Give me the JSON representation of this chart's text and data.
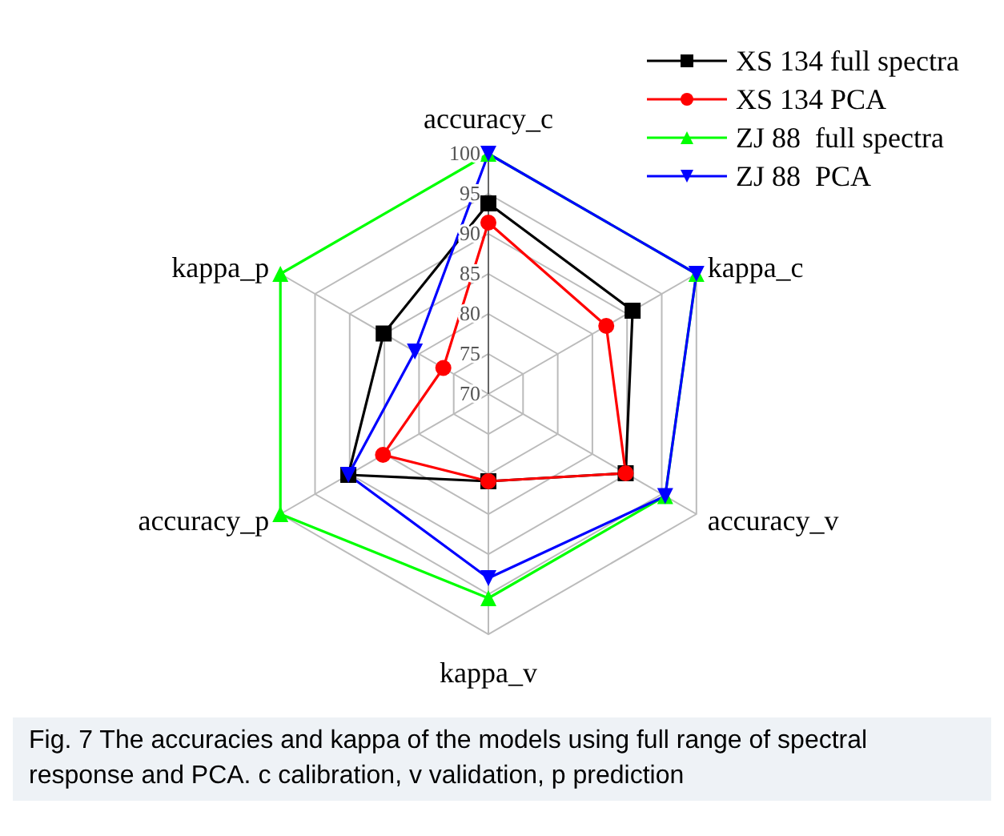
{
  "chart_data": {
    "type": "radar",
    "categories": [
      "accuracy_c",
      "kappa_c",
      "accuracy_v",
      "kappa_v",
      "accuracy_p",
      "kappa_p"
    ],
    "series": [
      {
        "name": "XS 134 full spectra",
        "color": "#000000",
        "marker": "square",
        "values": [
          93.8,
          90.8,
          89.8,
          80.9,
          90.2,
          85.1
        ]
      },
      {
        "name": "XS 134 PCA",
        "color": "#ff0000",
        "marker": "circle",
        "values": [
          91.4,
          87,
          89.8,
          80.9,
          85.2,
          76.5
        ]
      },
      {
        "name": "ZJ 88  full spectra",
        "color": "#00ff00",
        "marker": "triangle",
        "values": [
          100,
          100,
          95.5,
          95.5,
          100,
          100
        ]
      },
      {
        "name": "ZJ 88  PCA",
        "color": "#0000ff",
        "marker": "triangle-down",
        "values": [
          100,
          100,
          95.5,
          93,
          90.2,
          80.6
        ]
      }
    ],
    "ylim": [
      70,
      100
    ],
    "yticks": [
      70,
      75,
      80,
      85,
      90,
      95,
      100
    ],
    "grid": true,
    "legend": "top right",
    "annotations": [
      "Fig. 7 The accuracies and kappa of the models using full range of spectral response and PCA. c calibration, v validation, p prediction"
    ]
  }
}
